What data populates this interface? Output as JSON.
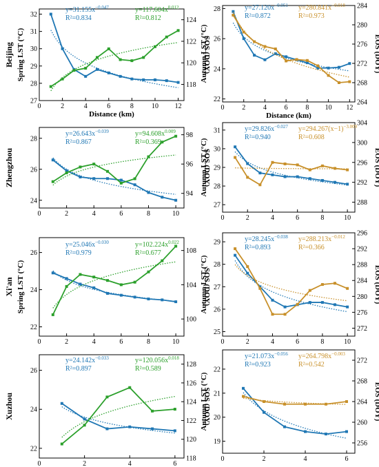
{
  "colors": {
    "lst": "#1f77b4",
    "sos": "#2ca02c",
    "eos": "#c8902a",
    "axis": "#000000"
  },
  "chart_data": [
    {
      "type": "line",
      "city": "Beijing",
      "ylabel_left": "Spring LST (°C)",
      "ylabel_right": "SOS (DOY)",
      "xlabel": "Distance (km)",
      "xlim": [
        0,
        12.5
      ],
      "xticks": [
        0,
        2,
        4,
        6,
        8,
        10,
        12
      ],
      "ylim_left": [
        27,
        32.3
      ],
      "yticks_left": [
        27,
        28,
        29,
        30,
        31,
        32
      ],
      "ylim_right": [
        116.5,
        125
      ],
      "yticks_right": [
        118,
        120,
        122,
        124
      ],
      "series": [
        {
          "key": "lst",
          "axis": "left",
          "x": [
            1,
            2,
            3,
            4,
            5,
            6,
            7,
            8,
            9,
            10,
            11,
            12
          ],
          "values": [
            32.0,
            30.0,
            28.8,
            28.4,
            28.8,
            28.6,
            28.4,
            28.25,
            28.2,
            28.2,
            28.15,
            28.05
          ]
        },
        {
          "key": "sos",
          "axis": "right",
          "x": [
            1,
            2,
            3,
            4,
            5,
            6,
            7,
            8,
            9,
            10,
            11,
            12
          ],
          "values": [
            117.8,
            118.5,
            119.3,
            119.5,
            120.5,
            121.3,
            120.3,
            120.2,
            120.5,
            121.5,
            122.4,
            123.0
          ]
        }
      ],
      "fits": [
        {
          "key": "lst",
          "label": "y=31.155x",
          "exp": "−0.047",
          "r2": "R²=0.834"
        },
        {
          "key": "sos",
          "label": "y=117.604x",
          "exp": "0.012",
          "r2": "R²=0.812"
        }
      ]
    },
    {
      "type": "line",
      "city": "",
      "ylabel_left": "Autumn LST (°C)",
      "ylabel_right": "EOS (DOY)",
      "xlabel": "Distance (km)",
      "xlim": [
        0,
        12.5
      ],
      "xticks": [
        0,
        2,
        4,
        6,
        8,
        10,
        12
      ],
      "ylim_left": [
        21.8,
        28.2
      ],
      "yticks_left": [
        22,
        24,
        26,
        28
      ],
      "ylim_right": [
        264,
        284
      ],
      "yticks_right": [
        264,
        268,
        272,
        276,
        280,
        284
      ],
      "series": [
        {
          "key": "lst",
          "axis": "left",
          "x": [
            1,
            2,
            3,
            4,
            5,
            6,
            7,
            8,
            9,
            10,
            11,
            12
          ],
          "values": [
            27.8,
            26.0,
            24.9,
            24.6,
            25.0,
            24.8,
            24.6,
            24.4,
            24.05,
            24.05,
            24.1,
            24.35
          ]
        },
        {
          "key": "eos",
          "axis": "right",
          "x": [
            1,
            2,
            3,
            4,
            5,
            6,
            7,
            8,
            9,
            10,
            11,
            12
          ],
          "values": [
            282.0,
            278.5,
            276.5,
            275.5,
            275.0,
            272.5,
            272.8,
            272.6,
            271.5,
            269.5,
            268.0,
            268.2
          ]
        }
      ],
      "fits": [
        {
          "key": "lst",
          "label": "y=27.120x",
          "exp": "−0.051",
          "r2": "R²=0.872"
        },
        {
          "key": "eos",
          "label": "y=280.841x",
          "exp": "−0.018",
          "r2": "R²=0.973"
        }
      ]
    },
    {
      "type": "line",
      "city": "Zhengzhou",
      "ylabel_left": "",
      "ylabel_right": "SOS (DOY)",
      "xlabel": "",
      "xlim": [
        0,
        10.6
      ],
      "xticks": [
        0,
        2,
        4,
        6,
        8,
        10
      ],
      "ylim_left": [
        23.5,
        28.7
      ],
      "yticks_left": [
        24,
        26,
        28
      ],
      "ylim_right": [
        93,
        98.5
      ],
      "yticks_right": [
        94,
        96,
        98
      ],
      "series": [
        {
          "key": "lst",
          "axis": "left",
          "x": [
            1,
            2,
            3,
            4,
            5,
            6,
            7,
            8,
            9,
            10
          ],
          "values": [
            26.6,
            25.9,
            25.5,
            25.4,
            25.4,
            25.3,
            25.0,
            24.5,
            24.2,
            24.0
          ]
        },
        {
          "key": "sos",
          "axis": "right",
          "x": [
            1,
            2,
            3,
            4,
            5,
            6,
            7,
            8,
            9,
            10
          ],
          "values": [
            94.8,
            95.4,
            95.8,
            96.0,
            95.5,
            94.7,
            95.0,
            96.5,
            97.5,
            97.9
          ]
        }
      ],
      "fits": [
        {
          "key": "lst",
          "label": "y=26.643x",
          "exp": "−0.039",
          "r2": "R²=0.867"
        },
        {
          "key": "sos",
          "label": "y=94.608x",
          "exp": "0.009",
          "r2": "R²=0.369"
        }
      ]
    },
    {
      "type": "line",
      "city": "",
      "ylabel_left": "Autumn LST (°C)",
      "ylabel_right": "EOS (DOY)",
      "xlabel": "",
      "xlim": [
        0,
        10.6
      ],
      "xticks": [
        0,
        2,
        4,
        6,
        8,
        10
      ],
      "ylim_left": [
        26.6,
        31.4
      ],
      "yticks_left": [
        27,
        28,
        29,
        30,
        31
      ],
      "ylim_right": [
        286,
        304
      ],
      "yticks_right": [
        288,
        292,
        296,
        300,
        304
      ],
      "series": [
        {
          "key": "lst",
          "axis": "left",
          "x": [
            1,
            2,
            3,
            4,
            5,
            6,
            7,
            8,
            9,
            10
          ],
          "values": [
            30.1,
            29.2,
            28.7,
            28.6,
            28.5,
            28.5,
            28.4,
            28.3,
            28.2,
            28.1
          ]
        },
        {
          "key": "eos",
          "axis": "right",
          "x": [
            1,
            2,
            3,
            4,
            5,
            6,
            7,
            8,
            9,
            10
          ],
          "values": [
            297.0,
            293.0,
            291.5,
            296.0,
            295.7,
            295.5,
            294.5,
            295.3,
            294.8,
            294.5
          ]
        }
      ],
      "fits": [
        {
          "key": "lst",
          "label": "y=29.826x",
          "exp": "−0.027",
          "r2": "R²=0.940"
        },
        {
          "key": "eos",
          "label": "y=294.267(x−1)",
          "exp": "−3.009",
          "r2": "R²=0.608"
        }
      ]
    },
    {
      "type": "line",
      "city": "Xi'an",
      "ylabel_left": "Spring LST (°C)",
      "ylabel_right": "SOS (DOY)",
      "xlabel": "",
      "xlim": [
        0,
        10.6
      ],
      "xticks": [
        0,
        2,
        4,
        6,
        8,
        10
      ],
      "ylim_left": [
        21.5,
        26.8
      ],
      "yticks_left": [
        22,
        24,
        26
      ],
      "ylim_right": [
        98,
        109.5
      ],
      "yticks_right": [
        100,
        104,
        108
      ],
      "series": [
        {
          "key": "lst",
          "axis": "left",
          "x": [
            1,
            2,
            3,
            4,
            5,
            6,
            7,
            8,
            9,
            10
          ],
          "values": [
            24.9,
            24.6,
            24.3,
            24.1,
            23.8,
            23.7,
            23.6,
            23.5,
            23.45,
            23.35
          ]
        },
        {
          "key": "sos",
          "axis": "right",
          "x": [
            1,
            2,
            3,
            4,
            5,
            6,
            7,
            8,
            9,
            10
          ],
          "values": [
            100.5,
            103.8,
            105.2,
            104.9,
            104.5,
            104.0,
            104.3,
            105.5,
            106.8,
            108.5
          ]
        }
      ],
      "fits": [
        {
          "key": "lst",
          "label": "y=25.046x",
          "exp": "−0.030",
          "r2": "R²=0.979"
        },
        {
          "key": "sos",
          "label": "y=102.224x",
          "exp": "0.022",
          "r2": "R²=0.677"
        }
      ]
    },
    {
      "type": "line",
      "city": "",
      "ylabel_left": "Autumn LST (°C)",
      "ylabel_right": "EOS (DOY)",
      "xlabel": "",
      "xlim": [
        0,
        10.6
      ],
      "xticks": [
        0,
        2,
        4,
        6,
        8,
        10
      ],
      "ylim_left": [
        24.8,
        29.4
      ],
      "yticks_left": [
        25,
        26,
        27,
        28,
        29
      ],
      "ylim_right": [
        270,
        296
      ],
      "yticks_right": [
        272,
        276,
        280,
        284,
        288,
        292,
        296
      ],
      "series": [
        {
          "key": "lst",
          "axis": "left",
          "x": [
            1,
            2,
            3,
            4,
            5,
            6,
            7,
            8,
            9,
            10
          ],
          "values": [
            28.4,
            27.6,
            27.0,
            26.4,
            26.1,
            26.2,
            26.3,
            26.3,
            26.2,
            26.1
          ]
        },
        {
          "key": "eos",
          "axis": "right",
          "x": [
            1,
            2,
            3,
            4,
            5,
            6,
            7,
            8,
            9,
            10
          ],
          "values": [
            292.0,
            287.5,
            282.0,
            275.5,
            275.5,
            278.0,
            281.5,
            283.0,
            283.3,
            282.0
          ]
        }
      ],
      "fits": [
        {
          "key": "lst",
          "label": "y=28.245x",
          "exp": "−0.038",
          "r2": "R²=0.893"
        },
        {
          "key": "eos",
          "label": "y=288.213x",
          "exp": "−0.012",
          "r2": "R²=0.366"
        }
      ]
    },
    {
      "type": "line",
      "city": "Xuzhou",
      "ylabel_left": "",
      "ylabel_right": "SOS (DOY)",
      "xlabel": "",
      "xlim": [
        0,
        6.4
      ],
      "xticks": [
        0,
        2,
        4,
        6
      ],
      "ylim_left": [
        21.5,
        26.8
      ],
      "yticks_left": [
        22,
        24,
        26
      ],
      "ylim_right": [
        118,
        129
      ],
      "yticks_right": [
        118,
        120,
        122,
        124,
        126,
        128
      ],
      "series": [
        {
          "key": "lst",
          "axis": "left",
          "x": [
            1,
            2,
            3,
            4,
            5,
            6
          ],
          "values": [
            24.3,
            23.5,
            23.0,
            23.1,
            23.0,
            22.9
          ]
        },
        {
          "key": "sos",
          "axis": "right",
          "x": [
            1,
            2,
            3,
            4,
            5,
            6
          ],
          "values": [
            119.5,
            121.5,
            124.5,
            125.5,
            123.0,
            123.2
          ]
        }
      ],
      "fits": [
        {
          "key": "lst",
          "label": "y=24.142x",
          "exp": "−0.033",
          "r2": "R²=0.897"
        },
        {
          "key": "sos",
          "label": "y=120.056x",
          "exp": "0.018",
          "r2": "R²=0.589"
        }
      ]
    },
    {
      "type": "line",
      "city": "",
      "ylabel_left": "Autumn LST (°C)",
      "ylabel_right": "EOS (DOY)",
      "xlabel": "",
      "xlim": [
        0,
        6.4
      ],
      "xticks": [
        0,
        2,
        4,
        6
      ],
      "ylim_left": [
        18.5,
        22.8
      ],
      "yticks_left": [
        19,
        20,
        21,
        22
      ],
      "ylim_right": [
        254,
        274
      ],
      "yticks_right": [
        256,
        260,
        264,
        268,
        272
      ],
      "series": [
        {
          "key": "lst",
          "axis": "left",
          "x": [
            1,
            2,
            3,
            4,
            5,
            6
          ],
          "values": [
            21.2,
            20.2,
            19.6,
            19.4,
            19.3,
            19.4
          ]
        },
        {
          "key": "eos",
          "axis": "right",
          "x": [
            1,
            2,
            3,
            4,
            5,
            6
          ],
          "values": [
            265.0,
            264.0,
            263.5,
            263.5,
            263.5,
            264.0
          ]
        }
      ],
      "fits": [
        {
          "key": "lst",
          "label": "y=21.073x",
          "exp": "−0.056",
          "r2": "R²=0.923"
        },
        {
          "key": "eos",
          "label": "y=264.798x",
          "exp": "−0.003",
          "r2": "R²=0.542"
        }
      ]
    }
  ]
}
